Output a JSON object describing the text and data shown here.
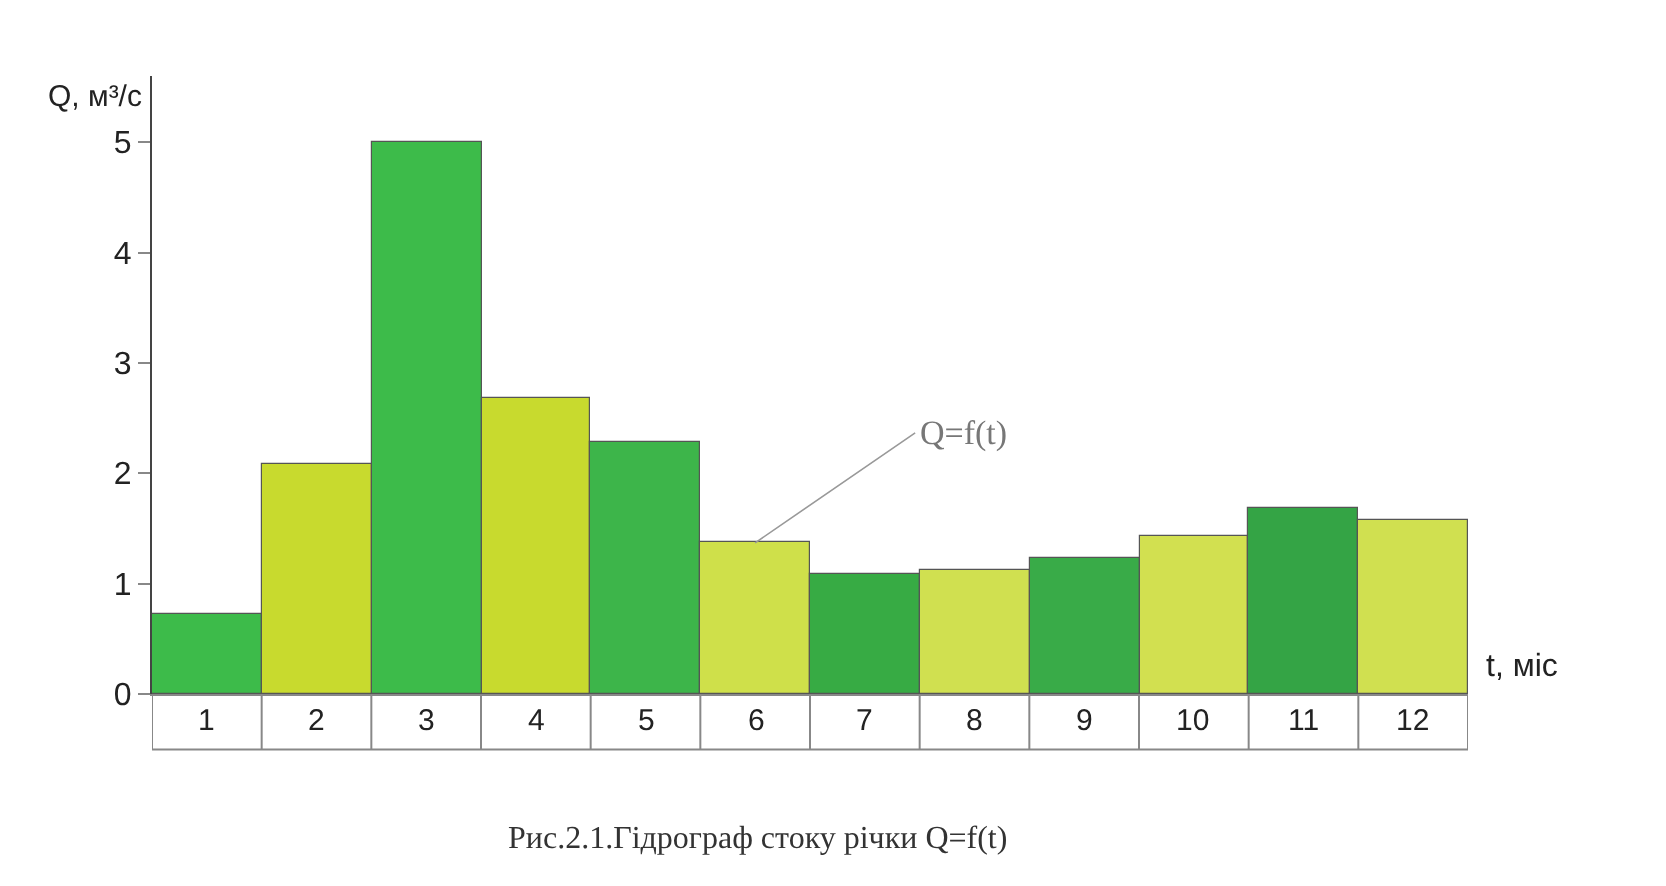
{
  "chart_data": {
    "type": "bar",
    "categories": [
      "1",
      "2",
      "3",
      "4",
      "5",
      "6",
      "7",
      "8",
      "9",
      "10",
      "11",
      "12"
    ],
    "values": [
      0.72,
      2.08,
      5.0,
      2.69,
      2.29,
      1.37,
      1.09,
      1.12,
      1.23,
      1.44,
      1.68,
      1.58
    ],
    "colors": [
      "#3dbb4a",
      "#c8da2e",
      "#3dbb4a",
      "#c8da2e",
      "#3db54a",
      "#cfe04a",
      "#37ab44",
      "#d0e050",
      "#39ab48",
      "#d2e050",
      "#34a445",
      "#d0e050"
    ],
    "xlabel": "t, міс",
    "ylabel": "Q, м³/с",
    "ylim": [
      0,
      5.6
    ],
    "yticks": [
      0,
      1,
      2,
      3,
      4,
      5
    ],
    "annotations": [
      {
        "text": "Q=f(t)",
        "x": "6",
        "y": 1.37
      },
      "Рис.2.1.Гідрограф стоку річки Q=f(t)"
    ]
  }
}
